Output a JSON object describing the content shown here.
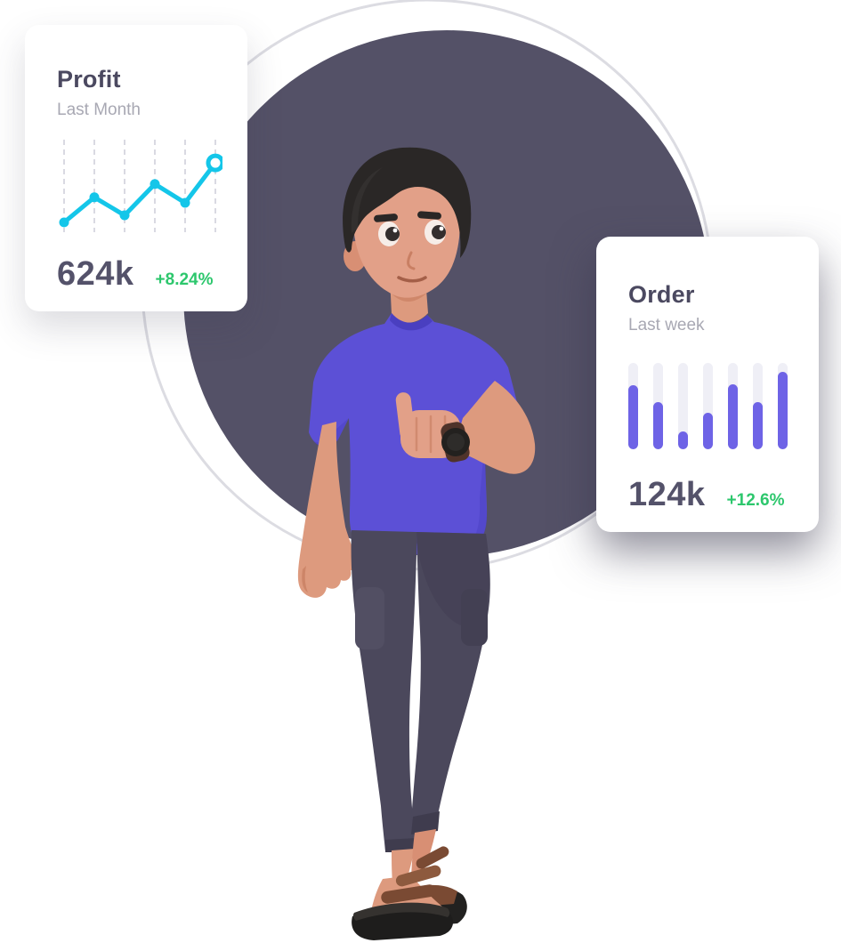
{
  "profit_card": {
    "title": "Profit",
    "subtitle": "Last Month",
    "value": "624k",
    "change": "+8.24%"
  },
  "order_card": {
    "title": "Order",
    "subtitle": "Last week",
    "value": "124k",
    "change": "+12.6%"
  },
  "character": {
    "name": "man-thumbs-up-illustration"
  },
  "colors": {
    "accent_cyan": "#14c6e9",
    "accent_purple": "#6e63e6",
    "bar_track": "#efeff6",
    "positive_green": "#2dc76d",
    "dark_circle": "#545167",
    "ring": "#dcdce2",
    "gridline": "#d9d9e2"
  },
  "chart_data": [
    {
      "type": "line",
      "title": "Profit",
      "subtitle": "Last Month",
      "x": [
        1,
        2,
        3,
        4,
        5,
        6
      ],
      "values": [
        8,
        40,
        17,
        57,
        33,
        84
      ],
      "ylim": [
        0,
        100
      ],
      "xlabel": "",
      "ylabel": "",
      "grid": "dashed-vertical",
      "legend": "none",
      "last_point_marker": "open-circle"
    },
    {
      "type": "bar",
      "title": "Order",
      "subtitle": "Last week",
      "categories": [
        "1",
        "2",
        "3",
        "4",
        "5",
        "6",
        "7"
      ],
      "values": [
        74,
        55,
        21,
        42,
        75,
        55,
        90
      ],
      "ylim": [
        0,
        100
      ],
      "xlabel": "",
      "ylabel": "",
      "grid": "off",
      "legend": "none",
      "bar_style": "rounded-capsule-on-track"
    }
  ]
}
